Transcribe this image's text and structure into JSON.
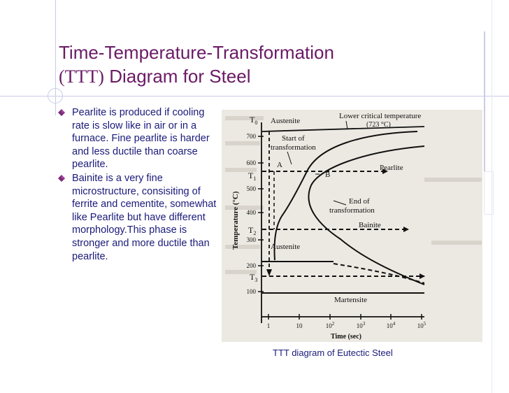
{
  "slide": {
    "title_line1": "Time-Temperature-Transformation",
    "title_abbr": "(TTT)",
    "title_rest": " Diagram for Steel"
  },
  "bullets": [
    {
      "text": "Pearlite is produced if cooling rate is slow like in air or in a furnace. Fine pearlite is harder and less ductile than coarse pearlite."
    },
    {
      "text": "Bainite is a very fine microstructure, consisiting of ferrite and cementite, somewhat like Pearlite but have different morphology.This phase is stronger and more ductile than pearlite."
    }
  ],
  "figure": {
    "caption": "TTT diagram of Eutectic Steel",
    "y_axis_label": "Temperature (°C)",
    "x_axis_label": "Time (sec)",
    "y_ticks": [
      "700",
      "600",
      "500",
      "400",
      "300",
      "200",
      "100"
    ],
    "x_ticks": [
      "1",
      "10",
      "10",
      "10",
      "10",
      "10"
    ],
    "x_tick_exponents": [
      "",
      "",
      "2",
      "3",
      "4",
      "5"
    ],
    "temp_labels": {
      "t0": "T",
      "t0_sub": "0",
      "t1": "T",
      "t1_sub": "1",
      "t2": "T",
      "t2_sub": "2",
      "t3": "T",
      "t3_sub": "3"
    },
    "annotations": {
      "lower_critical": "Lower critical temperature",
      "lower_critical_value": "(723 °C)",
      "austenite_top": "Austenite",
      "start_line1": "Start of",
      "start_line2": "transformation",
      "point_a": "A",
      "point_b": "B",
      "pearlite": "Pearlite",
      "end_line1": "End of",
      "end_line2": "transformation",
      "bainite": "Bainite",
      "austenite_bottom": "Austenite",
      "martensite": "Martensite"
    }
  },
  "colors": {
    "title": "#6a1a66",
    "body_text": "#1a1a7a",
    "bullet": "#7b2a78",
    "figure_bg": "#ece9e2",
    "decor": "#c9cbe6"
  },
  "icons": {
    "bullet": "diamond-bullet-icon"
  }
}
